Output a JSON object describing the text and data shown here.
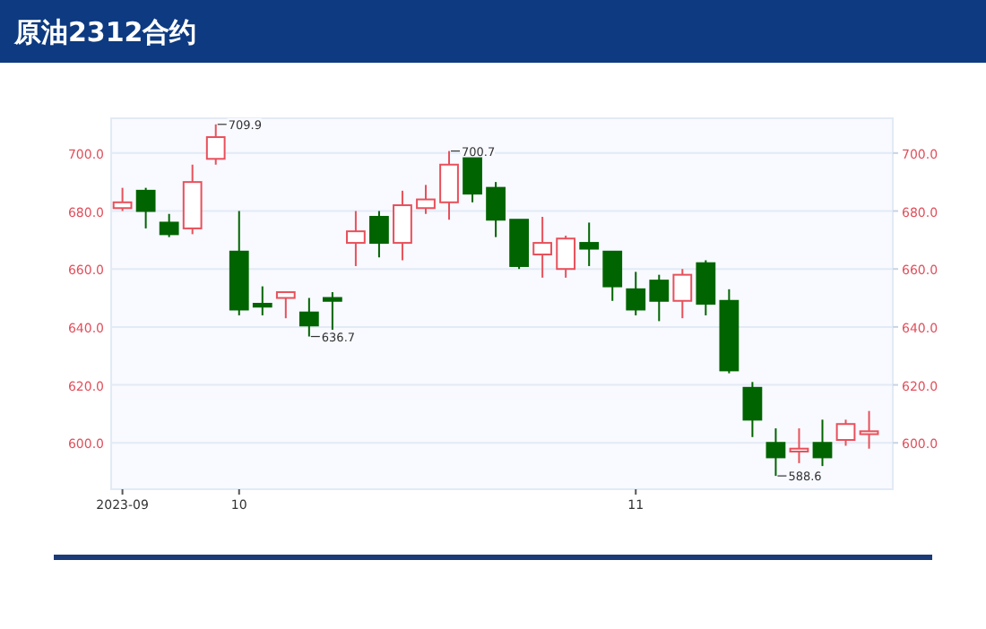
{
  "chart_data": {
    "type": "candlestick",
    "title": "原油2312合约",
    "categories": [
      "2023-09",
      null,
      null,
      null,
      null,
      "10",
      null,
      null,
      null,
      null,
      null,
      null,
      null,
      null,
      null,
      null,
      null,
      null,
      null,
      null,
      null,
      null,
      "11",
      null,
      null,
      null,
      null,
      null,
      null,
      null,
      null,
      null,
      null
    ],
    "ohlc": [
      [
        681,
        688,
        680,
        683
      ],
      [
        687,
        688,
        674,
        680
      ],
      [
        676,
        679,
        671,
        672
      ],
      [
        674,
        696,
        672,
        690
      ],
      [
        698,
        709.9,
        696,
        705.5
      ],
      [
        666,
        680,
        644,
        646
      ],
      [
        648,
        654,
        644,
        647
      ],
      [
        650,
        652,
        643,
        652
      ],
      [
        645,
        650,
        636.7,
        640.5
      ],
      [
        650,
        652,
        639,
        649
      ],
      [
        669,
        680,
        661,
        673
      ],
      [
        678,
        680,
        664,
        669
      ],
      [
        669,
        687,
        663,
        682
      ],
      [
        681,
        689,
        679,
        684
      ],
      [
        683,
        700.7,
        677,
        696
      ],
      [
        699,
        699,
        683,
        686
      ],
      [
        688,
        690,
        671,
        677
      ],
      [
        677,
        677,
        660,
        661
      ],
      [
        665,
        678,
        657,
        669
      ],
      [
        660,
        671.5,
        657,
        670.5
      ],
      [
        669,
        676,
        661,
        667
      ],
      [
        666,
        666,
        649,
        654
      ],
      [
        653,
        659,
        644,
        646
      ],
      [
        656,
        658,
        642,
        649
      ],
      [
        649,
        660,
        643,
        658
      ],
      [
        662,
        663,
        644,
        648
      ],
      [
        649,
        653,
        624,
        625
      ],
      [
        619,
        621,
        602,
        608
      ],
      [
        600,
        605,
        588.6,
        595
      ],
      [
        597,
        605,
        593,
        598
      ],
      [
        600,
        608,
        592,
        595
      ],
      [
        601,
        608,
        599,
        606.5
      ],
      [
        603,
        611,
        598,
        604
      ]
    ],
    "colors": [
      "#e8505b",
      "#006400",
      "#006400",
      "#e8505b",
      "#e8505b",
      "#006400",
      "#006400",
      "#e8505b",
      "#006400",
      "#006400",
      "#e8505b",
      "#006400",
      "#e8505b",
      "#e8505b",
      "#e8505b",
      "#006400",
      "#006400",
      "#006400",
      "#e8505b",
      "#e8505b",
      "#006400",
      "#006400",
      "#006400",
      "#006400",
      "#e8505b",
      "#006400",
      "#006400",
      "#006400",
      "#006400",
      "#e8505b",
      "#006400",
      "#e8505b",
      "#e8505b"
    ],
    "ylim": [
      584,
      712
    ],
    "yticks": [
      {
        "value": 600,
        "label": "600.0"
      },
      {
        "value": 620,
        "label": "620.0"
      },
      {
        "value": 640,
        "label": "640.0"
      },
      {
        "value": 660,
        "label": "660.0"
      },
      {
        "value": 680,
        "label": "680.0"
      },
      {
        "value": 700,
        "label": "700.0"
      }
    ],
    "y2lim": [
      584,
      712
    ],
    "y2ticks": [
      {
        "value": 600,
        "label": "600.0"
      },
      {
        "value": 620,
        "label": "620.0"
      },
      {
        "value": 640,
        "label": "640.0"
      },
      {
        "value": 660,
        "label": "660.0"
      },
      {
        "value": 680,
        "label": "680.0"
      },
      {
        "value": 700,
        "label": "700.0"
      }
    ],
    "grid": "y",
    "annotations": [
      "709.9",
      "636.7",
      "700.7",
      "588.6"
    ]
  }
}
